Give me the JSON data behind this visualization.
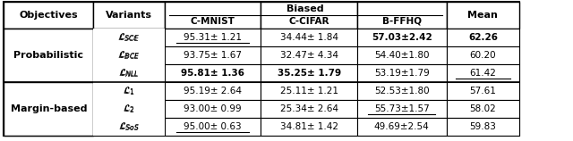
{
  "headers_row1": [
    "Objectives",
    "Variants",
    "Biased",
    "",
    ""
  ],
  "headers_row2": [
    "",
    "",
    "C-MNIST",
    "C-CIFAR",
    "B-FFHQ",
    "Mean"
  ],
  "col_headers": [
    "Objectives",
    "Variants",
    "C-MNIST",
    "C-CIFAR",
    "B-FFHQ",
    "Mean"
  ],
  "biased_label": "Biased",
  "rows": [
    {
      "objective": "Probabilistic",
      "variants": [
        "$\\mathcal{L}_{SCE}$",
        "$\\mathcal{L}_{BCE}$",
        "$\\mathcal{L}_{NLL}$"
      ],
      "cmnist": [
        "95.31± 1.21",
        "93.75± 1.67",
        "95.81± 1.36"
      ],
      "ccifar": [
        "34.44± 1.84",
        "32.47´ 4.34",
        "35.25± 1.79"
      ],
      "bffhq": [
        "57.03±2.42",
        "54.40±1.80",
        "53.19±1.79"
      ],
      "mean": [
        "62.26",
        "60.20",
        "61.42"
      ],
      "cmnist_bold": [
        false,
        false,
        true
      ],
      "ccifar_bold": [
        false,
        false,
        true
      ],
      "bffhq_bold": [
        true,
        false,
        false
      ],
      "mean_bold": [
        true,
        false,
        false
      ],
      "cmnist_underline": [
        true,
        false,
        false
      ],
      "ccifar_underline": [
        false,
        false,
        false
      ],
      "bffhq_underline": [
        false,
        false,
        false
      ],
      "mean_underline": [
        false,
        false,
        true
      ]
    },
    {
      "objective": "Margin-based",
      "variants": [
        "$\\mathcal{L}_{1}$",
        "$\\mathcal{L}_{2}$",
        "$\\mathcal{L}_{SoS}$"
      ],
      "cmnist": [
        "95.19± 2.64",
        "93.00± 0.99",
        "95.00± 0.63"
      ],
      "ccifar": [
        "25.11± 1.21",
        "25.34± 2.64",
        "34.81± 1.42"
      ],
      "bffhq": [
        "52.53±1.80",
        "55.73±1.57",
        "49.69±2.54"
      ],
      "mean": [
        "57.61",
        "58.02",
        "59.83"
      ],
      "cmnist_bold": [
        false,
        false,
        false
      ],
      "ccifar_bold": [
        false,
        false,
        false
      ],
      "bffhq_bold": [
        false,
        false,
        false
      ],
      "mean_bold": [
        false,
        false,
        false
      ],
      "cmnist_underline": [
        false,
        false,
        true
      ],
      "ccifar_underline": [
        false,
        false,
        false
      ],
      "bffhq_underline": [
        false,
        true,
        false
      ],
      "mean_underline": [
        false,
        false,
        false
      ]
    }
  ],
  "bg_color": "#f0f0f0",
  "cell_bg": "#ffffff"
}
